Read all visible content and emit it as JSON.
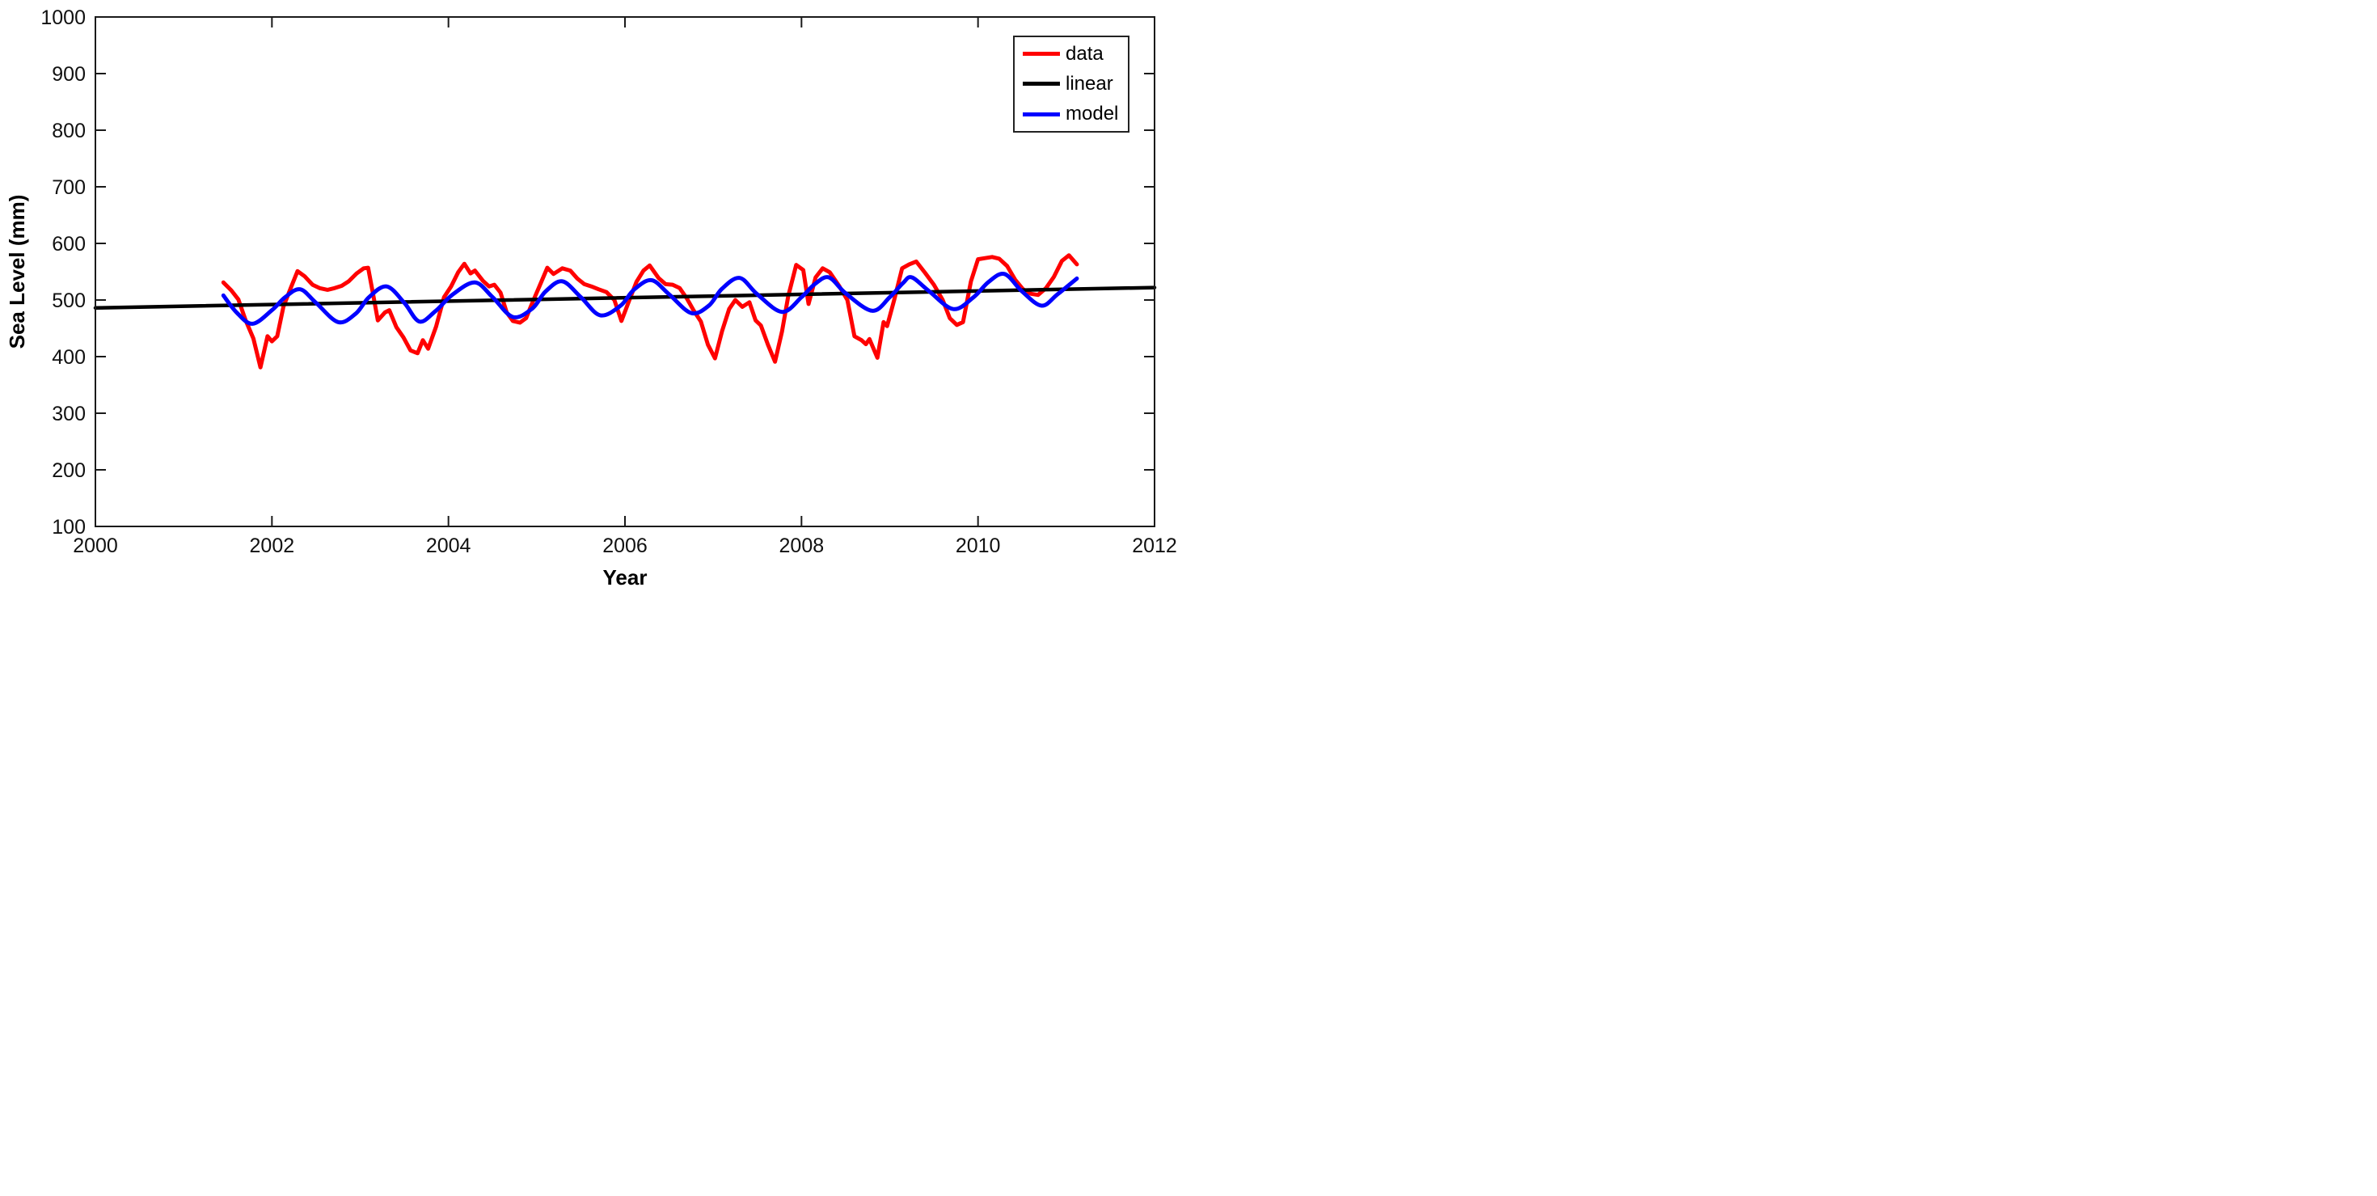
{
  "figure": {
    "xlabel": "Year",
    "ylabel": "Sea Level (mm)",
    "background_color": "#ffffff",
    "axis_color": "#1a1a1a",
    "legend": [
      {
        "label": "data",
        "color": "#ff0000"
      },
      {
        "label": "linear",
        "color": "#000000"
      },
      {
        "label": "model",
        "color": "#0000ff"
      }
    ]
  },
  "chart_data": {
    "type": "line",
    "title": "",
    "xlabel": "Year",
    "ylabel": "Sea Level (mm)",
    "xlim": [
      2000,
      2012
    ],
    "ylim": [
      100,
      1000
    ],
    "x_ticks": [
      "2000",
      "2002",
      "2004",
      "2006",
      "2008",
      "2010",
      "2012"
    ],
    "x_tick_values": [
      2000,
      2002,
      2004,
      2006,
      2008,
      2010,
      2012
    ],
    "y_ticks": [
      "100",
      "200",
      "300",
      "400",
      "500",
      "600",
      "700",
      "800",
      "900",
      "1000"
    ],
    "y_tick_values": [
      100,
      200,
      300,
      400,
      500,
      600,
      700,
      800,
      900,
      1000
    ],
    "grid": false,
    "legend_position": "top-right",
    "series": [
      {
        "name": "data",
        "color": "#ff0000",
        "line_width": 5,
        "style": "jagged",
        "points": [
          [
            2001.45,
            531
          ],
          [
            2001.54,
            517
          ],
          [
            2001.62,
            501
          ],
          [
            2001.7,
            465
          ],
          [
            2001.79,
            432
          ],
          [
            2001.87,
            381
          ],
          [
            2001.95,
            436
          ],
          [
            2002.0,
            427
          ],
          [
            2002.06,
            436
          ],
          [
            2002.13,
            488
          ],
          [
            2002.21,
            520
          ],
          [
            2002.29,
            551
          ],
          [
            2002.37,
            542
          ],
          [
            2002.46,
            527
          ],
          [
            2002.54,
            521
          ],
          [
            2002.63,
            518
          ],
          [
            2002.71,
            521
          ],
          [
            2002.79,
            525
          ],
          [
            2002.87,
            533
          ],
          [
            2002.96,
            547
          ],
          [
            2003.04,
            556
          ],
          [
            2003.09,
            557
          ],
          [
            2003.15,
            507
          ],
          [
            2003.2,
            464
          ],
          [
            2003.28,
            478
          ],
          [
            2003.33,
            482
          ],
          [
            2003.41,
            452
          ],
          [
            2003.49,
            434
          ],
          [
            2003.57,
            411
          ],
          [
            2003.65,
            406
          ],
          [
            2003.71,
            429
          ],
          [
            2003.77,
            414
          ],
          [
            2003.86,
            453
          ],
          [
            2003.95,
            505
          ],
          [
            2004.03,
            524
          ],
          [
            2004.11,
            549
          ],
          [
            2004.18,
            564
          ],
          [
            2004.25,
            547
          ],
          [
            2004.3,
            552
          ],
          [
            2004.39,
            534
          ],
          [
            2004.46,
            524
          ],
          [
            2004.52,
            527
          ],
          [
            2004.59,
            513
          ],
          [
            2004.66,
            478
          ],
          [
            2004.73,
            463
          ],
          [
            2004.81,
            460
          ],
          [
            2004.88,
            468
          ],
          [
            2004.95,
            495
          ],
          [
            2005.03,
            524
          ],
          [
            2005.12,
            557
          ],
          [
            2005.19,
            546
          ],
          [
            2005.29,
            556
          ],
          [
            2005.38,
            552
          ],
          [
            2005.46,
            538
          ],
          [
            2005.54,
            528
          ],
          [
            2005.62,
            524
          ],
          [
            2005.7,
            519
          ],
          [
            2005.79,
            514
          ],
          [
            2005.88,
            500
          ],
          [
            2005.96,
            463
          ],
          [
            2006.05,
            500
          ],
          [
            2006.13,
            532
          ],
          [
            2006.21,
            552
          ],
          [
            2006.28,
            561
          ],
          [
            2006.38,
            539
          ],
          [
            2006.46,
            528
          ],
          [
            2006.54,
            527
          ],
          [
            2006.62,
            521
          ],
          [
            2006.7,
            503
          ],
          [
            2006.78,
            481
          ],
          [
            2006.86,
            462
          ],
          [
            2006.94,
            421
          ],
          [
            2007.02,
            397
          ],
          [
            2007.1,
            445
          ],
          [
            2007.18,
            484
          ],
          [
            2007.25,
            500
          ],
          [
            2007.33,
            488
          ],
          [
            2007.41,
            496
          ],
          [
            2007.48,
            464
          ],
          [
            2007.54,
            455
          ],
          [
            2007.62,
            421
          ],
          [
            2007.7,
            391
          ],
          [
            2007.78,
            445
          ],
          [
            2007.85,
            507
          ],
          [
            2007.94,
            562
          ],
          [
            2008.02,
            553
          ],
          [
            2008.08,
            493
          ],
          [
            2008.16,
            540
          ],
          [
            2008.24,
            556
          ],
          [
            2008.32,
            549
          ],
          [
            2008.43,
            524
          ],
          [
            2008.52,
            500
          ],
          [
            2008.6,
            436
          ],
          [
            2008.68,
            429
          ],
          [
            2008.73,
            422
          ],
          [
            2008.77,
            431
          ],
          [
            2008.86,
            398
          ],
          [
            2008.93,
            461
          ],
          [
            2008.97,
            454
          ],
          [
            2009.05,
            500
          ],
          [
            2009.14,
            556
          ],
          [
            2009.22,
            563
          ],
          [
            2009.3,
            568
          ],
          [
            2009.4,
            548
          ],
          [
            2009.5,
            527
          ],
          [
            2009.6,
            500
          ],
          [
            2009.68,
            468
          ],
          [
            2009.76,
            456
          ],
          [
            2009.83,
            461
          ],
          [
            2009.92,
            533
          ],
          [
            2010.0,
            572
          ],
          [
            2010.08,
            574
          ],
          [
            2010.16,
            576
          ],
          [
            2010.24,
            573
          ],
          [
            2010.33,
            560
          ],
          [
            2010.42,
            536
          ],
          [
            2010.51,
            519
          ],
          [
            2010.6,
            511
          ],
          [
            2010.68,
            509
          ],
          [
            2010.77,
            521
          ],
          [
            2010.86,
            541
          ],
          [
            2010.95,
            569
          ],
          [
            2011.03,
            579
          ],
          [
            2011.12,
            563
          ]
        ]
      },
      {
        "name": "linear",
        "color": "#000000",
        "line_width": 4.5,
        "style": "straight",
        "points": [
          [
            2000,
            486
          ],
          [
            2012,
            522
          ]
        ]
      },
      {
        "name": "model",
        "color": "#0000ff",
        "line_width": 5,
        "style": "smooth",
        "points": [
          [
            2001.45,
            508
          ],
          [
            2001.6,
            478
          ],
          [
            2001.78,
            458
          ],
          [
            2002.0,
            482
          ],
          [
            2002.15,
            505
          ],
          [
            2002.32,
            519
          ],
          [
            2002.5,
            495
          ],
          [
            2002.75,
            461
          ],
          [
            2002.95,
            476
          ],
          [
            2003.1,
            505
          ],
          [
            2003.3,
            524
          ],
          [
            2003.5,
            495
          ],
          [
            2003.67,
            462
          ],
          [
            2003.85,
            480
          ],
          [
            2004.05,
            510
          ],
          [
            2004.3,
            531
          ],
          [
            2004.5,
            505
          ],
          [
            2004.73,
            470
          ],
          [
            2004.95,
            485
          ],
          [
            2005.1,
            515
          ],
          [
            2005.29,
            533
          ],
          [
            2005.5,
            505
          ],
          [
            2005.72,
            473
          ],
          [
            2005.95,
            490
          ],
          [
            2006.1,
            518
          ],
          [
            2006.3,
            535
          ],
          [
            2006.5,
            510
          ],
          [
            2006.75,
            477
          ],
          [
            2006.95,
            490
          ],
          [
            2007.1,
            520
          ],
          [
            2007.3,
            539
          ],
          [
            2007.5,
            510
          ],
          [
            2007.78,
            479
          ],
          [
            2008.0,
            505
          ],
          [
            2008.15,
            528
          ],
          [
            2008.31,
            540
          ],
          [
            2008.5,
            512
          ],
          [
            2008.8,
            481
          ],
          [
            2009.0,
            505
          ],
          [
            2009.15,
            530
          ],
          [
            2009.25,
            540
          ],
          [
            2009.45,
            515
          ],
          [
            2009.72,
            484
          ],
          [
            2009.95,
            505
          ],
          [
            2010.12,
            532
          ],
          [
            2010.3,
            546
          ],
          [
            2010.5,
            515
          ],
          [
            2010.72,
            490
          ],
          [
            2010.9,
            510
          ],
          [
            2011.12,
            538
          ]
        ]
      }
    ]
  }
}
